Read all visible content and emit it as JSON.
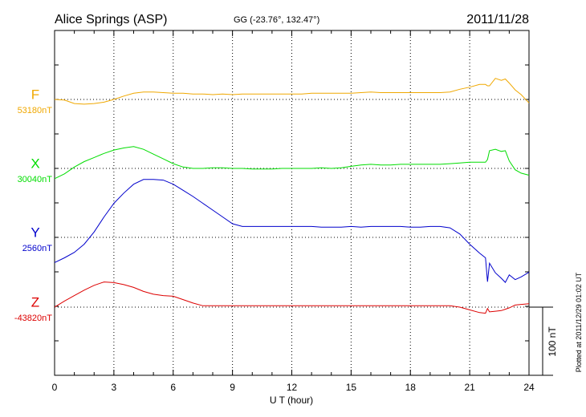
{
  "header": {
    "station": "Alice Springs (ASP)",
    "coords": "GG (-23.76°, 132.47°)",
    "date": "2011/11/28"
  },
  "scale_label": "100 nT",
  "plotted_note": "Plotted at 2011/12/29 01:02 UT",
  "chart_data": {
    "type": "line",
    "xlabel": "U T (hour)",
    "xlim": [
      0,
      24
    ],
    "x_ticks": [
      "0",
      "3",
      "6",
      "9",
      "12",
      "15",
      "18",
      "21",
      "24"
    ],
    "x_values": [
      0,
      0.5,
      1,
      1.5,
      2,
      2.5,
      3,
      3.5,
      4,
      4.5,
      5,
      5.5,
      6,
      6.5,
      7,
      7.5,
      8,
      8.5,
      9,
      9.5,
      10,
      10.5,
      11,
      11.5,
      12,
      12.5,
      13,
      13.5,
      14,
      14.5,
      15,
      15.5,
      16,
      16.5,
      17,
      17.5,
      18,
      18.5,
      19,
      19.5,
      20,
      20.5,
      21,
      21.5,
      21.8,
      21.9,
      22,
      22.3,
      22.6,
      22.8,
      23,
      23.3,
      23.6,
      24
    ],
    "scale_nT": 100,
    "series": [
      {
        "name": "F",
        "baseline": "53180nT",
        "color": "#f0a800",
        "values": [
          53180,
          53179,
          53174,
          53173,
          53174,
          53176,
          53180,
          53185,
          53189,
          53191,
          53191,
          53190,
          53189,
          53189,
          53188,
          53188,
          53187,
          53188,
          53187,
          53188,
          53188,
          53188,
          53188,
          53188,
          53188,
          53188,
          53189,
          53189,
          53189,
          53189,
          53189,
          53190,
          53191,
          53190,
          53190,
          53190,
          53190,
          53190,
          53190,
          53190,
          53191,
          53195,
          53198,
          53202,
          53202,
          53200,
          53200,
          53211,
          53208,
          53210,
          53204,
          53194,
          53187,
          53175
        ]
      },
      {
        "name": "X",
        "baseline": "30040nT",
        "color": "#00dd00",
        "values": [
          30025,
          30032,
          30042,
          30050,
          30056,
          30062,
          30067,
          30070,
          30072,
          30068,
          30061,
          30054,
          30047,
          30042,
          30040,
          30040,
          30041,
          30041,
          30040,
          30040,
          30039,
          30039,
          30039,
          30040,
          30040,
          30040,
          30040,
          30041,
          30040,
          30041,
          30043,
          30045,
          30046,
          30045,
          30045,
          30046,
          30046,
          30046,
          30046,
          30046,
          30047,
          30048,
          30049,
          30049,
          30049,
          30053,
          30066,
          30068,
          30065,
          30066,
          30051,
          30038,
          30033,
          30030
        ]
      },
      {
        "name": "Y",
        "baseline": "2560nT",
        "color": "#0000cc",
        "values": [
          2523,
          2530,
          2538,
          2550,
          2568,
          2590,
          2610,
          2625,
          2638,
          2645,
          2645,
          2644,
          2638,
          2629,
          2620,
          2610,
          2600,
          2590,
          2580,
          2576,
          2576,
          2576,
          2576,
          2576,
          2576,
          2576,
          2576,
          2575,
          2575,
          2575,
          2576,
          2575,
          2576,
          2576,
          2576,
          2576,
          2575,
          2575,
          2576,
          2576,
          2574,
          2565,
          2550,
          2537,
          2530,
          2495,
          2522,
          2508,
          2500,
          2494,
          2505,
          2498,
          2502,
          2509
        ]
      },
      {
        "name": "Z",
        "baseline": "-43820nT",
        "color": "#dd0000",
        "values": [
          -43820,
          -43811,
          -43803,
          -43795,
          -43788,
          -43783,
          -43784,
          -43787,
          -43791,
          -43797,
          -43801,
          -43803,
          -43804,
          -43809,
          -43814,
          -43818,
          -43818,
          -43818,
          -43818,
          -43818,
          -43818,
          -43818,
          -43818,
          -43818,
          -43818,
          -43818,
          -43818,
          -43818,
          -43818,
          -43818,
          -43818,
          -43818,
          -43818,
          -43818,
          -43818,
          -43818,
          -43818,
          -43818,
          -43818,
          -43818,
          -43818,
          -43820,
          -43824,
          -43828,
          -43829,
          -43822,
          -43827,
          -43826,
          -43825,
          -43823,
          -43821,
          -43817,
          -43816,
          -43815
        ]
      }
    ]
  }
}
